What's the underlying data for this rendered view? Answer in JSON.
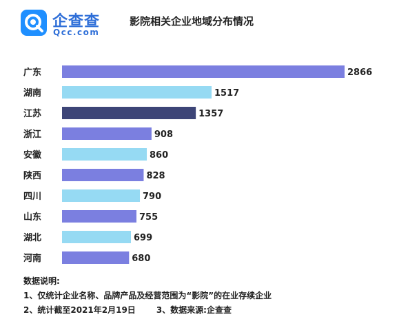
{
  "logo": {
    "name": "企查查",
    "domain": "Qcc.com",
    "brand_color": "#1f8fff"
  },
  "title": "影院相关企业地域分布情况",
  "notes": {
    "heading": "数据说明:",
    "item1": "1、仅统计企业名称、品牌产品及经营范围为“影院”的在业存续企业",
    "item2": "2、统计截至2021年2月19日",
    "item3": "3、数据来源:企查查"
  },
  "chart_data": {
    "type": "bar",
    "orientation": "horizontal",
    "categories": [
      "广东",
      "湖南",
      "江苏",
      "浙江",
      "安徽",
      "陕西",
      "四川",
      "山东",
      "湖北",
      "河南"
    ],
    "values": [
      2866,
      1517,
      1357,
      908,
      860,
      828,
      790,
      755,
      699,
      680
    ],
    "bar_colors": [
      "#7b7fe0",
      "#96daf3",
      "#3d4577",
      "#7b7fe0",
      "#96daf3",
      "#7b7fe0",
      "#96daf3",
      "#7b7fe0",
      "#96daf3",
      "#7b7fe0"
    ],
    "xlim": [
      0,
      2866
    ],
    "grid": false,
    "data_labels": true
  }
}
